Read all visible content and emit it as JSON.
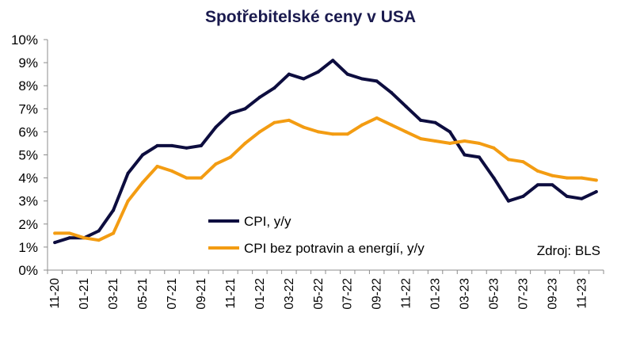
{
  "chart_data": {
    "type": "line",
    "title": "Spotřebitelské ceny v USA",
    "source": "Zdroj: BLS",
    "ylim": [
      0,
      10
    ],
    "y_ticks": [
      "0%",
      "1%",
      "2%",
      "3%",
      "4%",
      "5%",
      "6%",
      "7%",
      "8%",
      "9%",
      "10%"
    ],
    "x_tick_labels": [
      "11-20",
      "01-21",
      "03-21",
      "05-21",
      "07-21",
      "09-21",
      "11-21",
      "01-22",
      "03-22",
      "05-22",
      "07-22",
      "09-22",
      "11-22",
      "01-23",
      "03-23",
      "05-23",
      "07-23",
      "09-23",
      "11-23"
    ],
    "x": [
      "11-20",
      "12-20",
      "01-21",
      "02-21",
      "03-21",
      "04-21",
      "05-21",
      "06-21",
      "07-21",
      "08-21",
      "09-21",
      "10-21",
      "11-21",
      "12-21",
      "01-22",
      "02-22",
      "03-22",
      "04-22",
      "05-22",
      "06-22",
      "07-22",
      "08-22",
      "09-22",
      "10-22",
      "11-22",
      "12-22",
      "01-23",
      "02-23",
      "03-23",
      "04-23",
      "05-23",
      "06-23",
      "07-23",
      "08-23",
      "09-23",
      "10-23",
      "11-23",
      "12-23"
    ],
    "grid": false,
    "legend_position": "bottom-left inside",
    "series": [
      {
        "name": "CPI, y/y",
        "color": "#0d0d3f",
        "values": [
          1.2,
          1.4,
          1.4,
          1.7,
          2.6,
          4.2,
          5.0,
          5.4,
          5.4,
          5.3,
          5.4,
          6.2,
          6.8,
          7.0,
          7.5,
          7.9,
          8.5,
          8.3,
          8.6,
          9.1,
          8.5,
          8.3,
          8.2,
          7.7,
          7.1,
          6.5,
          6.4,
          6.0,
          5.0,
          4.9,
          4.0,
          3.0,
          3.2,
          3.7,
          3.7,
          3.2,
          3.1,
          3.4
        ]
      },
      {
        "name": "CPI bez potravin a energií, y/y",
        "color": "#f39c12",
        "values": [
          1.6,
          1.6,
          1.4,
          1.3,
          1.6,
          3.0,
          3.8,
          4.5,
          4.3,
          4.0,
          4.0,
          4.6,
          4.9,
          5.5,
          6.0,
          6.4,
          6.5,
          6.2,
          6.0,
          5.9,
          5.9,
          6.3,
          6.6,
          6.3,
          6.0,
          5.7,
          5.6,
          5.5,
          5.6,
          5.5,
          5.3,
          4.8,
          4.7,
          4.3,
          4.1,
          4.0,
          4.0,
          3.9
        ]
      }
    ]
  }
}
